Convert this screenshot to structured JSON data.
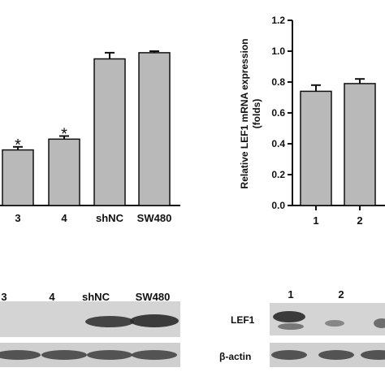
{
  "chart_data": [
    {
      "type": "bar",
      "categories": [
        "3",
        "4",
        "shNC",
        "SW480"
      ],
      "values": [
        0.36,
        0.43,
        0.95,
        0.99
      ],
      "errors": [
        0.02,
        0.02,
        0.04,
        0.01
      ],
      "significance": [
        "*",
        "*",
        "",
        ""
      ],
      "ylim": [
        0,
        1.2
      ],
      "title": "",
      "xlabel": "",
      "ylabel": ""
    },
    {
      "type": "bar",
      "categories": [
        "1",
        "2"
      ],
      "values": [
        0.74,
        0.79
      ],
      "errors": [
        0.04,
        0.03
      ],
      "ylim": [
        0,
        1.2
      ],
      "yticks": [
        "0.0",
        "0.2",
        "0.4",
        "0.6",
        "0.8",
        "1.0",
        "1.2"
      ],
      "ylabel_line1": "Relative LEF1 mRNA expression",
      "ylabel_line2": "(folds)",
      "title": "",
      "xlabel": ""
    }
  ],
  "blots": {
    "left_lanes": [
      "3",
      "4",
      "shNC",
      "SW480"
    ],
    "right_lanes": [
      "1",
      "2"
    ],
    "row1_label": "LEF1",
    "row2_label": "β-actin"
  },
  "colors": {
    "bar": "#b9b9b9",
    "blot_bg": "#d4d4d4",
    "band": "#2a2a2a"
  }
}
